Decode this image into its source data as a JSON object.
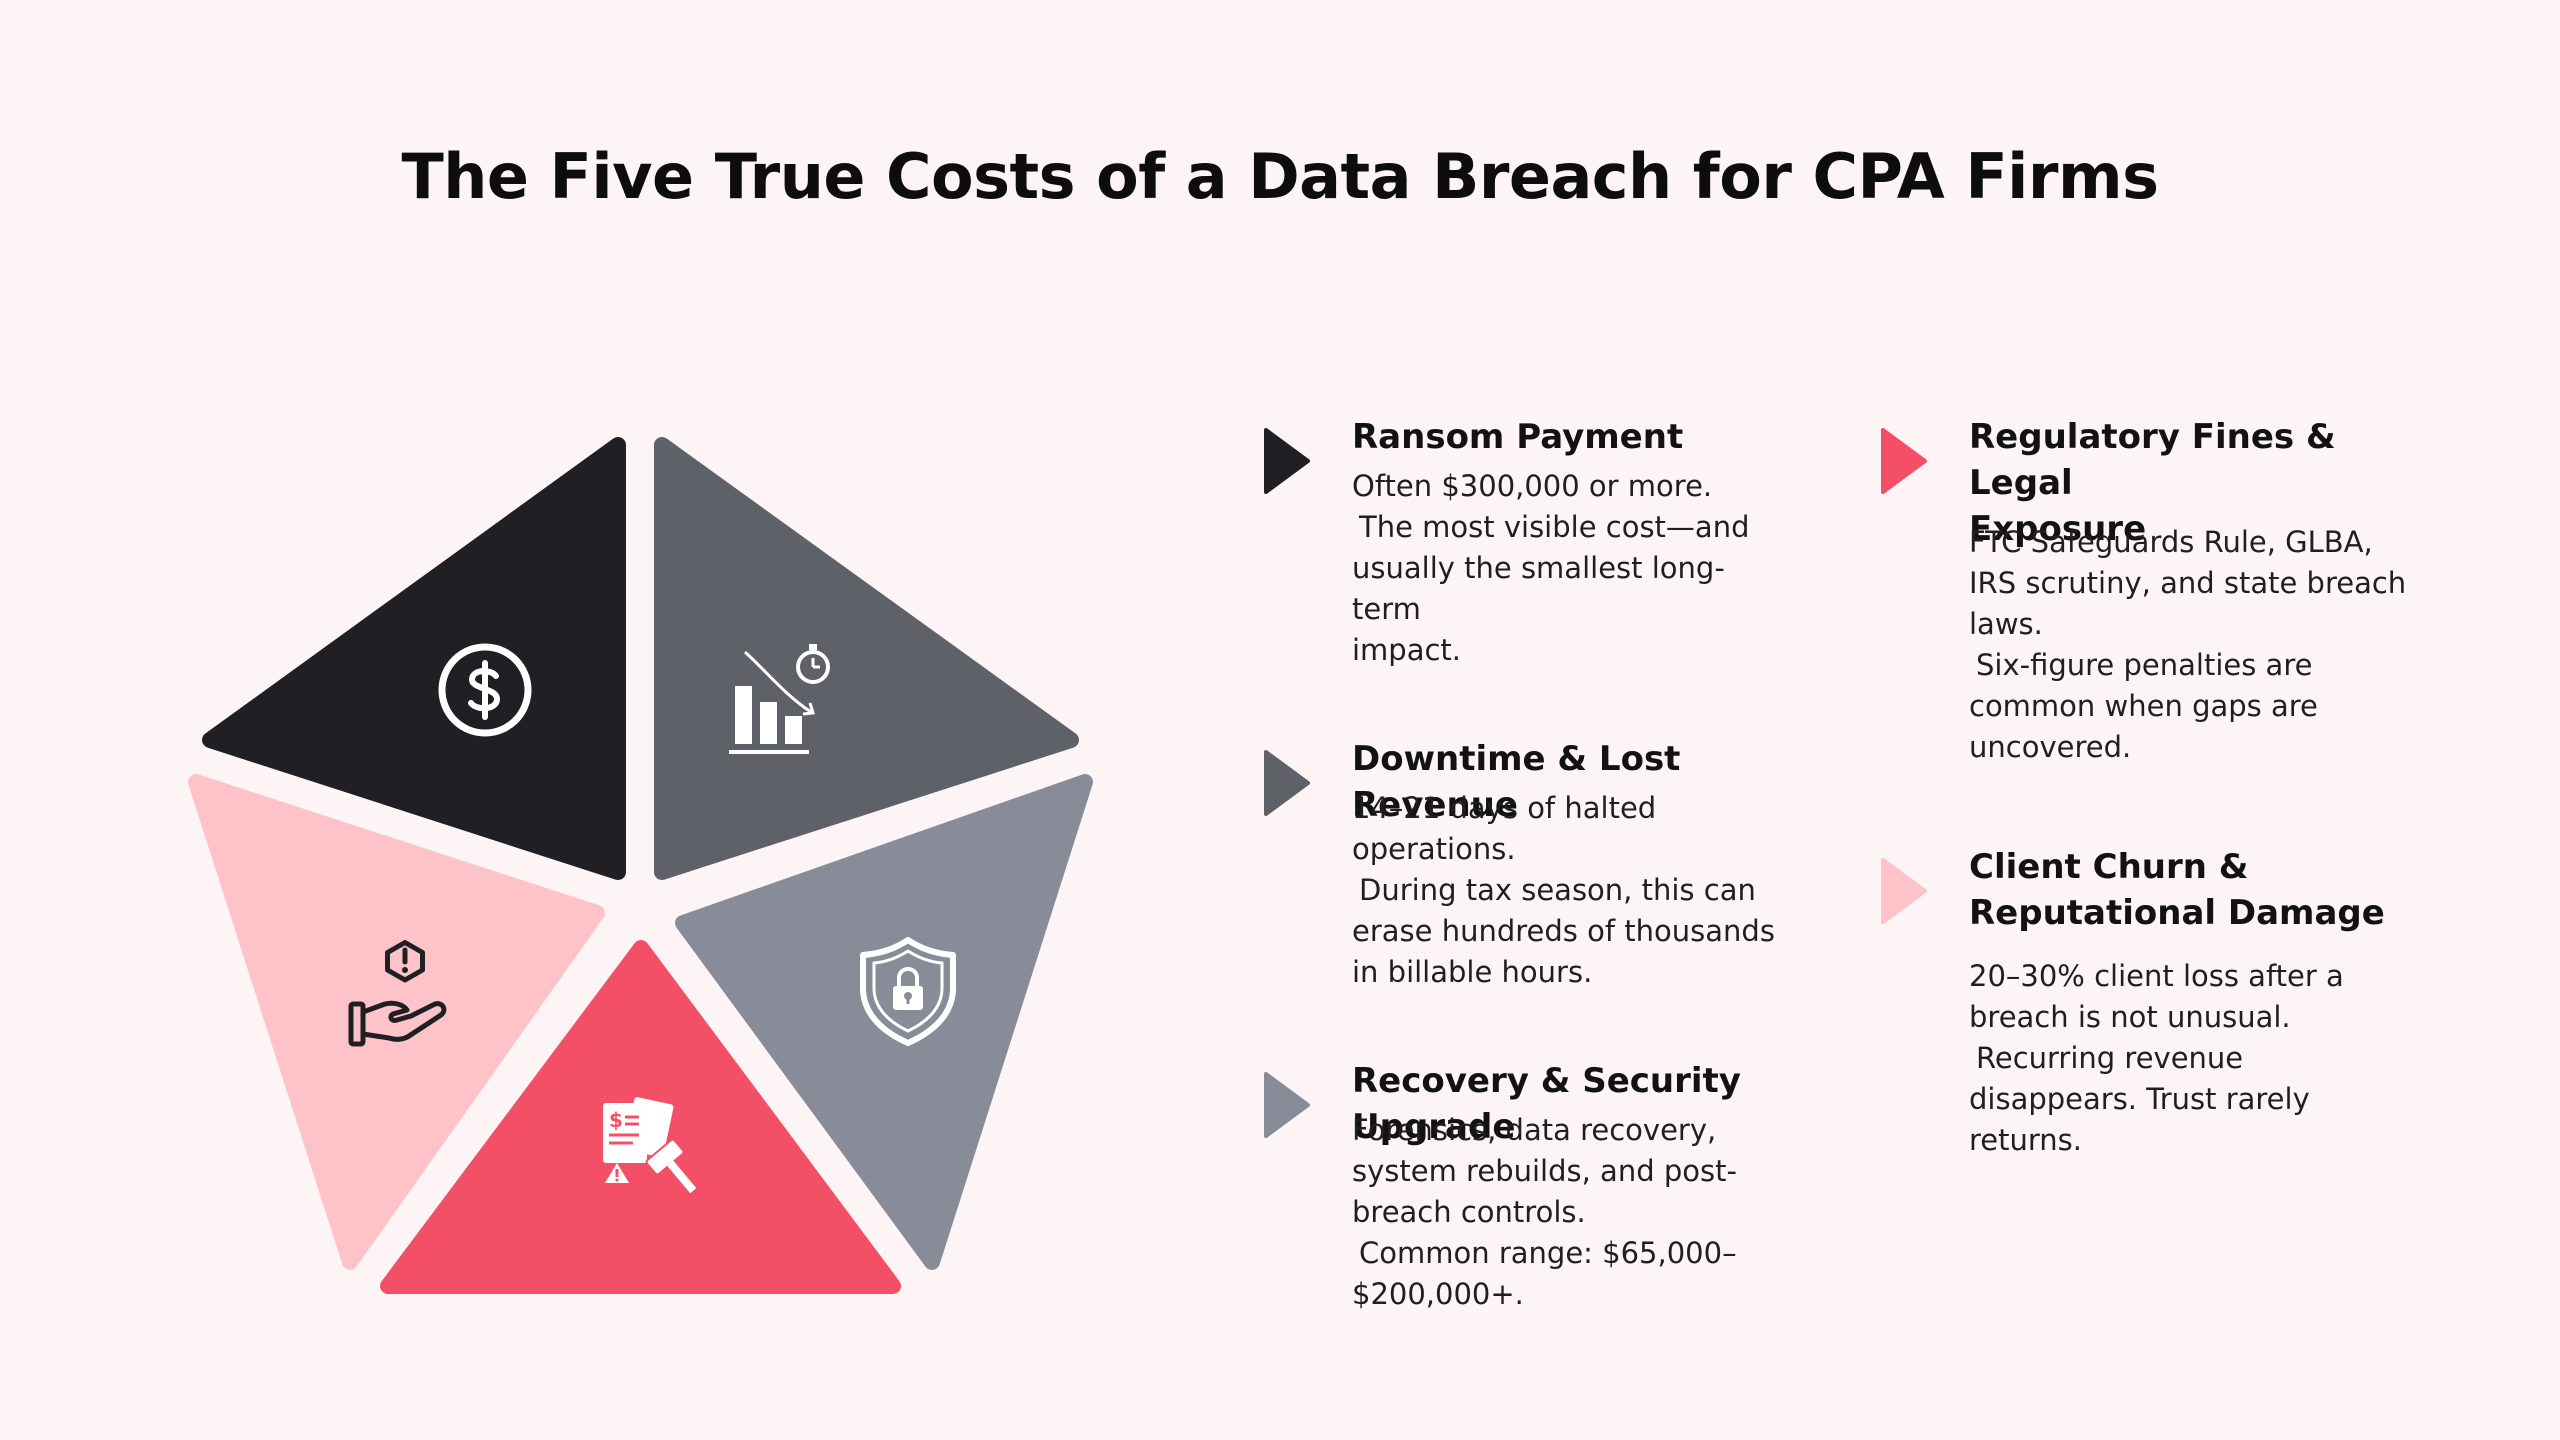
{
  "title": "The Five True Costs of a Data Breach for CPA Firms",
  "colors": {
    "background": "#fdf5f5",
    "dark": "#202024",
    "slate": "#5f6169",
    "gray": "#878c98",
    "coral": "#f35067",
    "pink": "#fec3c9"
  },
  "segments": [
    {
      "id": "ransom",
      "color": "#202024",
      "icon": "dollar-coin-icon"
    },
    {
      "id": "downtime",
      "color": "#5f6169",
      "icon": "declining-chart-icon"
    },
    {
      "id": "recovery",
      "color": "#878c98",
      "icon": "shield-lock-icon"
    },
    {
      "id": "regulatory",
      "color": "#f35067",
      "icon": "legal-document-gavel-icon"
    },
    {
      "id": "churn",
      "color": "#fec3c9",
      "icon": "hand-warning-icon"
    }
  ],
  "items": [
    {
      "id": "ransom",
      "heading": "Ransom Payment",
      "body_lines": [
        "Often $300,000 or more.",
        "The most visible cost—and",
        "usually the smallest long-term",
        "impact."
      ],
      "marker_color": "#202024"
    },
    {
      "id": "downtime",
      "heading": "Downtime & Lost Revenue",
      "body_lines": [
        "14–21 days of halted",
        "operations.",
        "During tax season, this can",
        "erase hundreds of thousands",
        "in billable hours."
      ],
      "marker_color": "#5f6169"
    },
    {
      "id": "recovery",
      "heading": "Recovery & Security Upgrade",
      "body_lines": [
        "Forensics, data recovery,",
        "system rebuilds, and post-",
        "breach controls.",
        "Common range: $65,000–",
        "$200,000+."
      ],
      "marker_color": "#878c98"
    },
    {
      "id": "regulatory",
      "heading_lines": [
        "Regulatory Fines & Legal",
        "Exposure"
      ],
      "body_lines": [
        "FTC Safeguards Rule, GLBA,",
        "IRS scrutiny, and state breach",
        "laws.",
        "Six-figure penalties are",
        "common when gaps are",
        "uncovered."
      ],
      "marker_color": "#f35067"
    },
    {
      "id": "churn",
      "heading_lines": [
        "Client Churn &",
        "Reputational Damage"
      ],
      "body_lines": [
        "20–30% client loss after a",
        "breach is not unusual.",
        "Recurring revenue",
        "disappears. Trust rarely",
        "returns."
      ],
      "marker_color": "#fec3c9"
    }
  ]
}
